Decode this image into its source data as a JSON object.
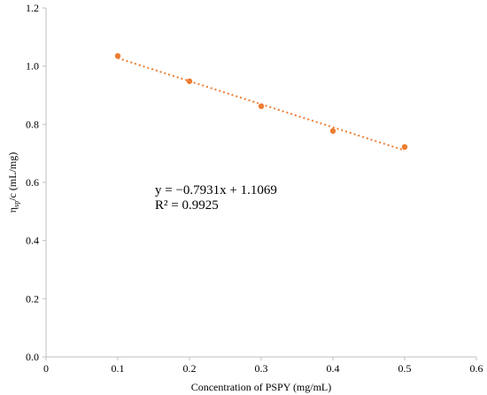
{
  "chart_data": {
    "type": "scatter",
    "xlabel": "Concentration of PSPY (mg/mL)",
    "ylabel_main": "η",
    "ylabel_sub": "sp",
    "ylabel_rest": "/c (mL/mg)",
    "xlim": [
      0,
      0.6
    ],
    "ylim": [
      0,
      1.2
    ],
    "x_ticks": [
      "0",
      "0.1",
      "0.2",
      "0.3",
      "0.4",
      "0.5",
      "0.6"
    ],
    "y_ticks": [
      "0.0",
      "0.2",
      "0.4",
      "0.6",
      "0.8",
      "1.0",
      "1.2"
    ],
    "grid": false,
    "series": [
      {
        "x": [
          0.1,
          0.2,
          0.3,
          0.4,
          0.5
        ],
        "y": [
          1.035,
          0.948,
          0.862,
          0.777,
          0.722
        ],
        "color": "#ED7D31"
      }
    ],
    "trendline": {
      "type": "linear",
      "slope": -0.7931,
      "intercept": 1.1069,
      "x_range": [
        0.1,
        0.5
      ],
      "color": "#ED7D31",
      "style": "dotted"
    },
    "annotations": {
      "equation": "y = −0.7931x + 1.1069",
      "r_squared": "R² = 0.9925"
    }
  }
}
